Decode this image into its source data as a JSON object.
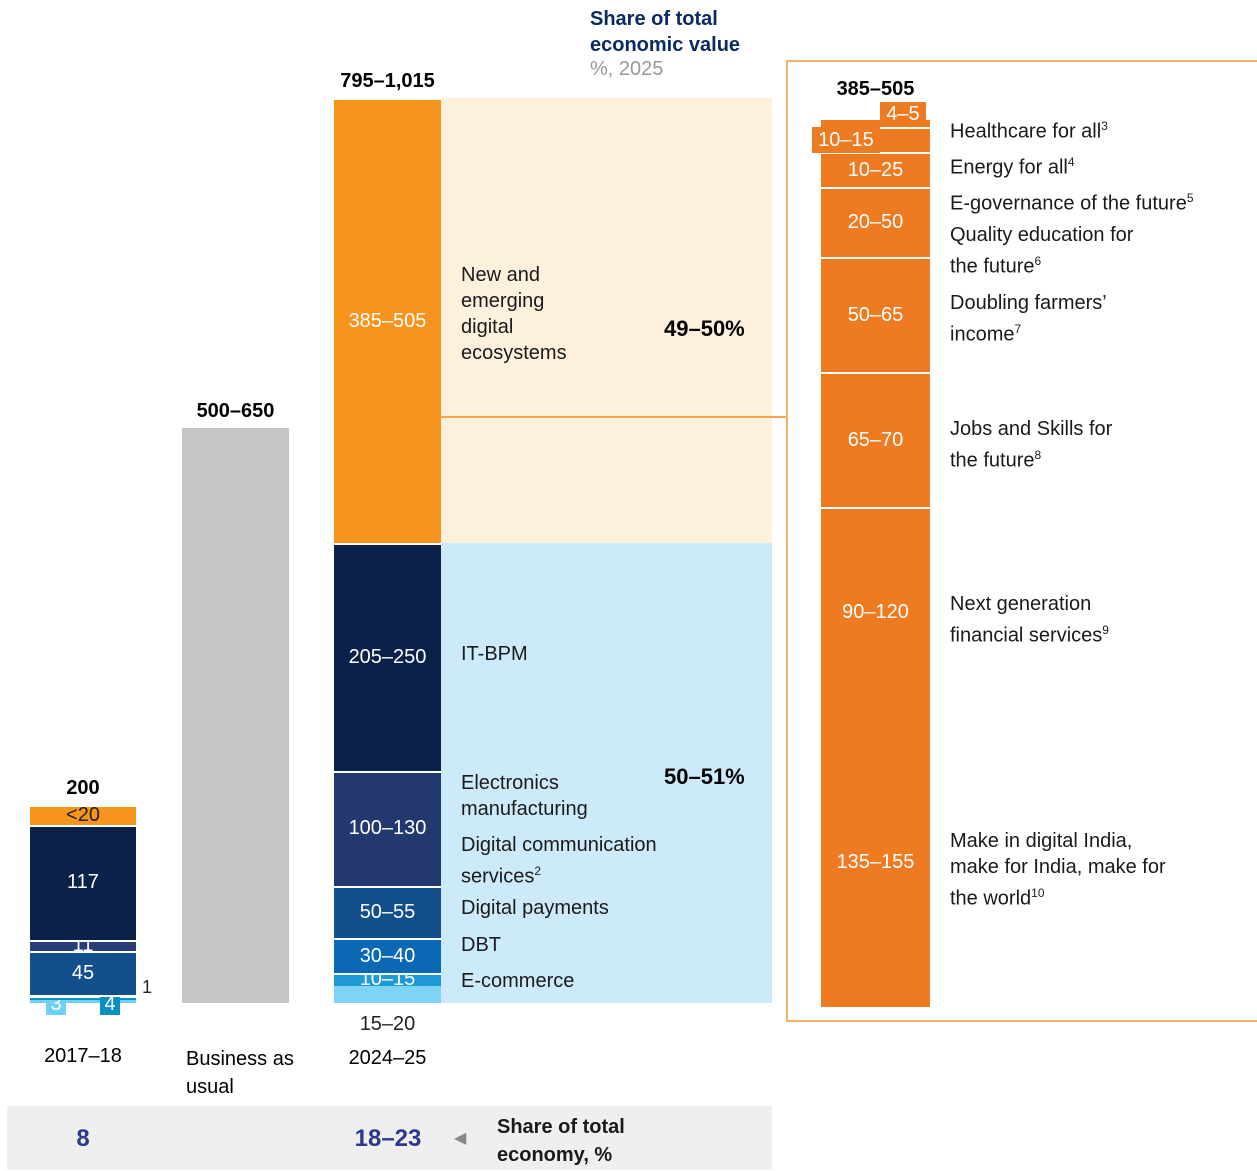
{
  "chart_data": {
    "type": "stacked-bar",
    "header": {
      "title": "Share of total economic value",
      "subtitle": "%, 2025"
    },
    "bars": [
      {
        "category": "2017–18",
        "total": 200,
        "segments": [
          {
            "value": 3,
            "color": "#6fcff5"
          },
          {
            "value": 4,
            "color": "#0a8fc4"
          },
          {
            "value": 1,
            "color": "#2f8fd0"
          },
          {
            "value": 45,
            "color": "#124f8c"
          },
          {
            "value": 11,
            "color": "#283d78"
          },
          {
            "value": 117,
            "color": "#0b2149"
          },
          {
            "value": 20,
            "value_label": "<20",
            "color": "#f7941d"
          }
        ]
      },
      {
        "category": "Business as usual",
        "total": [
          500,
          650
        ],
        "total_label": "500–650",
        "color": "#c6c6c6"
      },
      {
        "category": "2024–25",
        "total": [
          795,
          1015
        ],
        "total_label": "795–1,015",
        "segments": [
          {
            "name": "E-commerce",
            "values": [
              15,
              20
            ],
            "value_label": "15–20",
            "color": "#7fd4f6"
          },
          {
            "name": "DBT",
            "values": [
              10,
              15
            ],
            "value_label": "10–15",
            "color": "#1e9bd7"
          },
          {
            "name": "Digital payments",
            "values": [
              30,
              40
            ],
            "value_label": "30–40",
            "color": "#0a68b5"
          },
          {
            "name": "Digital communication services",
            "note": "2",
            "values": [
              50,
              55
            ],
            "value_label": "50–55",
            "color": "#124f8c"
          },
          {
            "name": "Electronics manufacturing",
            "values": [
              100,
              130
            ],
            "value_label": "100–130",
            "color": "#23386f"
          },
          {
            "name": "IT-BPM",
            "values": [
              205,
              250
            ],
            "value_label": "205–250",
            "color": "#0b2149"
          },
          {
            "name": "New and emerging digital ecosystems",
            "values": [
              385,
              505
            ],
            "value_label": "385–505",
            "color": "#f7941d"
          }
        ]
      }
    ],
    "groups": [
      {
        "label": "50–51%",
        "color": "#cdeafa"
      },
      {
        "label": "49–50%",
        "color": "#fdf0dc"
      }
    ],
    "breakdown": {
      "total": [
        385,
        505
      ],
      "total_label": "385–505",
      "color": "#ee7a22",
      "segments": [
        {
          "name": "Make in digital India, make for India, make for the world",
          "note": "10",
          "values": [
            135,
            155
          ],
          "value_label": "135–155"
        },
        {
          "name": "Next generation financial services",
          "note": "9",
          "values": [
            90,
            120
          ],
          "value_label": "90–120"
        },
        {
          "name": "Jobs and Skills for the future",
          "note": "8",
          "values": [
            65,
            70
          ],
          "value_label": "65–70"
        },
        {
          "name": "Doubling farmers’ income",
          "note": "7",
          "values": [
            50,
            65
          ],
          "value_label": "50–65"
        },
        {
          "name": "Quality education for the future",
          "note": "6",
          "values": [
            20,
            50
          ],
          "value_label": "20–50"
        },
        {
          "name": "E-governance of the future",
          "note": "5",
          "values": [
            10,
            25
          ],
          "value_label": "10–25"
        },
        {
          "name": "Energy for all",
          "note": "4",
          "values": [
            10,
            15
          ],
          "value_label": "10–15"
        },
        {
          "name": "Healthcare for all",
          "note": "3",
          "values": [
            4,
            5
          ],
          "value_label": "4–5"
        }
      ]
    },
    "economy_share": {
      "label": "Share of total economy, %",
      "items": [
        {
          "value": 8
        },
        {
          "values": [
            18,
            23
          ],
          "value_label": "18–23"
        }
      ]
    }
  }
}
